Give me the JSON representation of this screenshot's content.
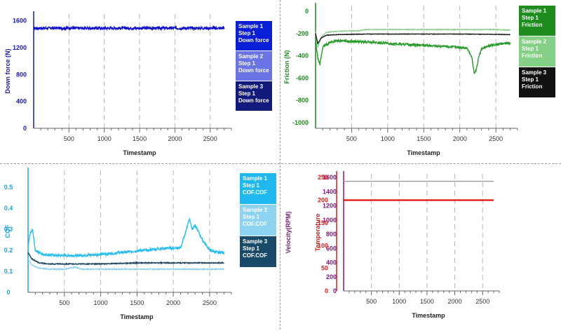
{
  "chart_data": [
    {
      "id": "p1",
      "type": "line",
      "ylabel": "Down force (N)",
      "xlabel": "Timestamp",
      "xlim": [
        0,
        2800
      ],
      "ylim": [
        0,
        1700
      ],
      "xticks": [
        500,
        1000,
        1500,
        2000,
        2500
      ],
      "yticks": [
        0,
        400,
        800,
        1200,
        1600
      ],
      "label_color": "#1a1aaa",
      "series": [
        {
          "name": "Sample 1 Step 1 Down force",
          "color": "#0b0bd1",
          "x": [
            0,
            2700
          ],
          "y": [
            1490,
            1490
          ],
          "noise": 20
        }
      ],
      "legend": [
        {
          "lines": [
            "Sample 1",
            "Step 1",
            "Down force"
          ],
          "color": "#0a1ed6"
        },
        {
          "lines": [
            "Sample 2",
            "Step 1",
            "Down force"
          ],
          "color": "#6b74e4"
        },
        {
          "lines": [
            "Sample 3",
            "Step 1",
            "Down force"
          ],
          "color": "#121a7c"
        }
      ]
    },
    {
      "id": "p2",
      "type": "line",
      "ylabel": "Friction (N)",
      "xlabel": "Timestamp",
      "xlim": [
        0,
        2800
      ],
      "ylim": [
        -1050,
        50
      ],
      "xticks": [
        500,
        1000,
        1500,
        2000,
        2500
      ],
      "yticks": [
        0,
        -200,
        -400,
        -600,
        -800,
        -1000
      ],
      "label_color": "#1d8a1d",
      "series": [
        {
          "name": "Sample 2 Step 1 Friction",
          "color": "#8fce8f",
          "x": [
            0,
            30,
            80,
            150,
            300,
            600,
            700,
            900,
            1500,
            2000,
            2500,
            2700
          ],
          "y": [
            -180,
            -320,
            -230,
            -190,
            -180,
            -175,
            -165,
            -165,
            -165,
            -165,
            -165,
            -170
          ],
          "noise": 3
        },
        {
          "name": "Sample 3 Step 1 Friction",
          "color": "#222222",
          "x": [
            0,
            30,
            80,
            150,
            300,
            700,
            1000,
            1500,
            2000,
            2500,
            2700
          ],
          "y": [
            -200,
            -290,
            -240,
            -215,
            -210,
            -205,
            -205,
            -205,
            -205,
            -208,
            -210
          ],
          "noise": 2
        },
        {
          "name": "Sample 1 Step 1 Friction",
          "color": "#2a9a2a",
          "x": [
            0,
            30,
            60,
            100,
            200,
            300,
            500,
            800,
            1000,
            1300,
            1600,
            1900,
            2100,
            2170,
            2200,
            2230,
            2260,
            2300,
            2400,
            2500,
            2600,
            2700
          ],
          "y": [
            -260,
            -420,
            -480,
            -320,
            -280,
            -265,
            -270,
            -280,
            -290,
            -300,
            -310,
            -320,
            -330,
            -420,
            -560,
            -520,
            -420,
            -340,
            -310,
            -300,
            -290,
            -285
          ],
          "noise": 10
        }
      ],
      "legend": [
        {
          "lines": [
            "Sample 1",
            "Step 1",
            "Friction"
          ],
          "color": "#1e8c1e"
        },
        {
          "lines": [
            "Sample 2",
            "Step 1",
            "Friction"
          ],
          "color": "#86cf86"
        },
        {
          "lines": [
            "Sample 3",
            "Step 1",
            "Friction"
          ],
          "color": "#111111"
        }
      ]
    },
    {
      "id": "p3",
      "type": "line",
      "ylabel": "COF",
      "xlabel": "Timestamp",
      "xlim": [
        0,
        2800
      ],
      "ylim": [
        0,
        0.58
      ],
      "xticks": [
        500,
        1000,
        1500,
        2000,
        2500
      ],
      "yticks": [
        0,
        0.1,
        0.2,
        0.3,
        0.4,
        0.5
      ],
      "label_color": "#1da1e0",
      "series": [
        {
          "name": "Sample 2 Step 1 COF.COF",
          "color": "#8fd3f2",
          "x": [
            0,
            50,
            150,
            300,
            500,
            650,
            750,
            900,
            1500,
            2000,
            2700
          ],
          "y": [
            0.16,
            0.13,
            0.115,
            0.11,
            0.11,
            0.12,
            0.11,
            0.11,
            0.11,
            0.11,
            0.11
          ],
          "noise": 0.002
        },
        {
          "name": "Sample 3 Step 1 COF.COF",
          "color": "#1f4560",
          "x": [
            0,
            50,
            150,
            300,
            500,
            1000,
            1500,
            2000,
            2500,
            2700
          ],
          "y": [
            0.19,
            0.16,
            0.14,
            0.135,
            0.135,
            0.135,
            0.14,
            0.14,
            0.14,
            0.14
          ],
          "noise": 0.002
        },
        {
          "name": "Sample 1 Step 1 COF.COF",
          "color": "#29bdf0",
          "x": [
            0,
            30,
            60,
            100,
            200,
            400,
            700,
            1000,
            1300,
            1600,
            1900,
            2100,
            2180,
            2220,
            2260,
            2300,
            2400,
            2500,
            2600,
            2700
          ],
          "y": [
            0.22,
            0.28,
            0.3,
            0.2,
            0.18,
            0.175,
            0.175,
            0.18,
            0.19,
            0.2,
            0.21,
            0.21,
            0.3,
            0.35,
            0.3,
            0.32,
            0.25,
            0.2,
            0.19,
            0.19
          ],
          "noise": 0.006
        }
      ],
      "legend": [
        {
          "lines": [
            "Sample 1",
            "Step 1",
            "COF.COF"
          ],
          "color": "#1fb8ef"
        },
        {
          "lines": [
            "Sample 2",
            "Step 1",
            "COF.COF"
          ],
          "color": "#8fd3f2"
        },
        {
          "lines": [
            "Sample 3",
            "Step 1",
            "COF.COF"
          ],
          "color": "#1a4a6a"
        }
      ]
    },
    {
      "id": "p4",
      "type": "line",
      "ylabel": "Velocity(RPM)",
      "ylabel2": "Temperature",
      "xlabel": "Timestamp",
      "xlim": [
        0,
        2800
      ],
      "ylim": [
        0,
        1650
      ],
      "ylim2": [
        0,
        258
      ],
      "xticks": [
        500,
        1000,
        1500,
        2000,
        2500
      ],
      "yticks": [
        0,
        200,
        400,
        600,
        800,
        1000,
        1200,
        1400,
        1600
      ],
      "yticks2": [
        0,
        50,
        100,
        150,
        200,
        250
      ],
      "label_color": "#7a1a7a",
      "label_color2": "#d62020",
      "series": [
        {
          "name": "Velocity",
          "color": "#999999",
          "x": [
            0,
            2700
          ],
          "y": [
            1545,
            1545
          ],
          "noise": 0
        },
        {
          "name": "Temperature",
          "color": "#e01010",
          "axis": 2,
          "x": [
            0,
            2700
          ],
          "y": [
            200,
            200
          ],
          "noise": 0
        }
      ],
      "legend": []
    }
  ]
}
